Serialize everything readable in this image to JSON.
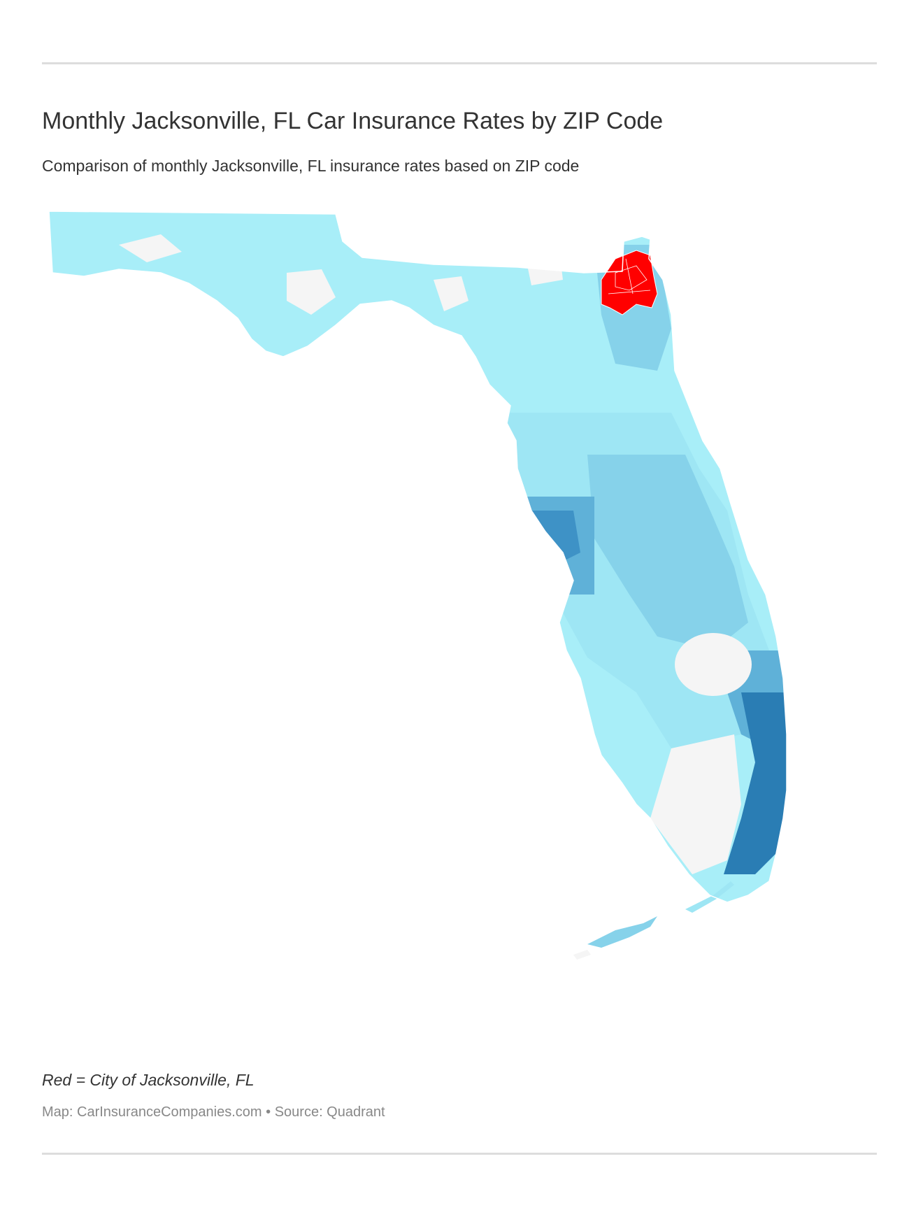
{
  "header": {
    "title": "Monthly Jacksonville, FL Car Insurance Rates by ZIP Code",
    "subtitle": "Comparison of monthly Jacksonville, FL insurance rates based on ZIP code"
  },
  "map": {
    "region": "Florida",
    "highlight_color": "#ff0000",
    "no_data_color": "#f5f5f5",
    "border_color": "#ffffff",
    "scale_colors": [
      "#a8eef8",
      "#9ee6f4",
      "#86d2ea",
      "#5fb1d8",
      "#3e92c6",
      "#2a7db4"
    ]
  },
  "footer": {
    "legend_note": "Red = City of Jacksonville, FL",
    "credit": "Map: CarInsuranceCompanies.com • Source: Quadrant"
  }
}
